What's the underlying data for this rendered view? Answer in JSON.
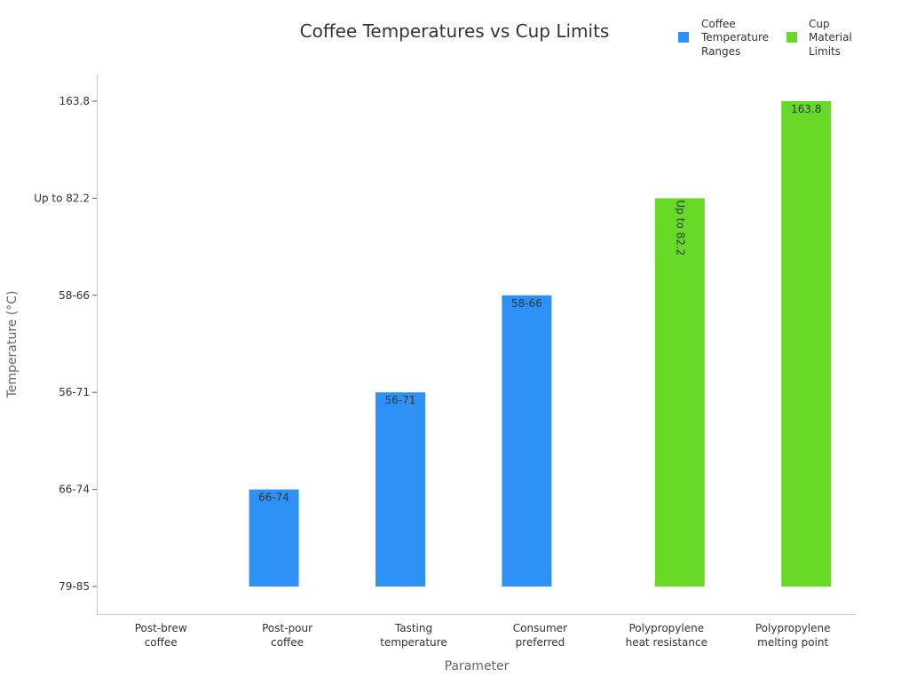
{
  "chart_data": {
    "type": "bar",
    "title": "Coffee Temperatures vs Cup Limits",
    "xlabel": "Parameter",
    "ylabel": "Temperature (°C)",
    "categories": [
      "Post-brew coffee",
      "Post-pour coffee",
      "Tasting temperature",
      "Consumer preferred",
      "Polypropylene heat resistance",
      "Polypropylene melting point"
    ],
    "category_lines": [
      [
        "Post-brew",
        "coffee"
      ],
      [
        "Post-pour",
        "coffee"
      ],
      [
        "Tasting",
        "temperature"
      ],
      [
        "Consumer",
        "preferred"
      ],
      [
        "Polypropylene",
        "heat resistance"
      ],
      [
        "Polypropylene",
        "melting point"
      ]
    ],
    "y_categories": [
      "79-85",
      "66-74",
      "56-71",
      "58-66",
      "Up to 82.2",
      "163.8"
    ],
    "legend_position": "top-right",
    "grid": false,
    "series": [
      {
        "name": "Coffee Temperature Ranges",
        "name_lines": [
          "Coffee",
          "Temperature",
          "Ranges"
        ],
        "color": "#2e91f5",
        "values": [
          "79-85",
          "66-74",
          "56-71",
          "58-66",
          null,
          null
        ],
        "labels": [
          "",
          "66-74",
          "56-71",
          "58-66",
          "",
          ""
        ],
        "label_rotated": false
      },
      {
        "name": "Cup Material Limits",
        "name_lines": [
          "Cup",
          "Material",
          "Limits"
        ],
        "color": "#66da26",
        "values": [
          null,
          null,
          null,
          null,
          "Up to 82.2",
          "163.8"
        ],
        "labels": [
          "",
          "",
          "",
          "",
          "Up to 82.2",
          "163.8"
        ],
        "label_rotated": [
          false,
          false,
          false,
          false,
          true,
          false
        ]
      }
    ]
  }
}
